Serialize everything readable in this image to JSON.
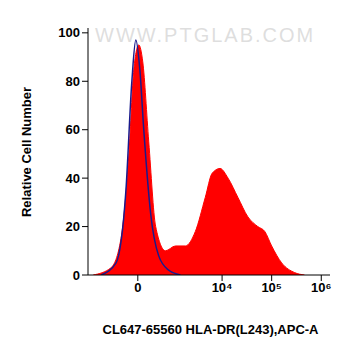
{
  "chart_data": {
    "type": "area",
    "xlabel": "CL647-65560 HLA-DR(L243),APC-A",
    "ylabel": "Relative Cell Number",
    "annotations": [
      "WWW.PTGLAB.COM"
    ],
    "xlim": [
      -2000,
      1500000
    ],
    "xticks": [
      0,
      {
        "value": 10000,
        "label": "10⁴"
      },
      {
        "value": 100000,
        "label": "10⁵"
      },
      {
        "value": 1000000,
        "label": "10⁶"
      }
    ],
    "ylim": [
      0,
      102
    ],
    "yticks": [
      0,
      20,
      40,
      60,
      80,
      100
    ],
    "grid": false,
    "series": [
      {
        "type": "area",
        "color": "#ff0000",
        "x": [
          -1560,
          -636,
          -346,
          -170,
          -74,
          18,
          93,
          212,
          371,
          668,
          1117,
          1800,
          2880,
          4570,
          6300,
          9100,
          13200,
          20900,
          33200,
          52500,
          72500,
          100000,
          159000,
          290000,
          460000
        ],
        "values": [
          0,
          3,
          15,
          50,
          85,
          95,
          88,
          55,
          20,
          10,
          12,
          12,
          18,
          32,
          42,
          44,
          40,
          32,
          24,
          20,
          18,
          12,
          5,
          1,
          0
        ]
      },
      {
        "type": "line",
        "color": "#1a1a8c",
        "x": [
          -1056,
          -476,
          -232,
          -112,
          -37,
          37,
          112,
          255,
          450,
          787,
          1420
        ],
        "values": [
          0,
          5,
          35,
          80,
          97,
          85,
          60,
          25,
          8,
          2,
          0
        ]
      }
    ]
  }
}
